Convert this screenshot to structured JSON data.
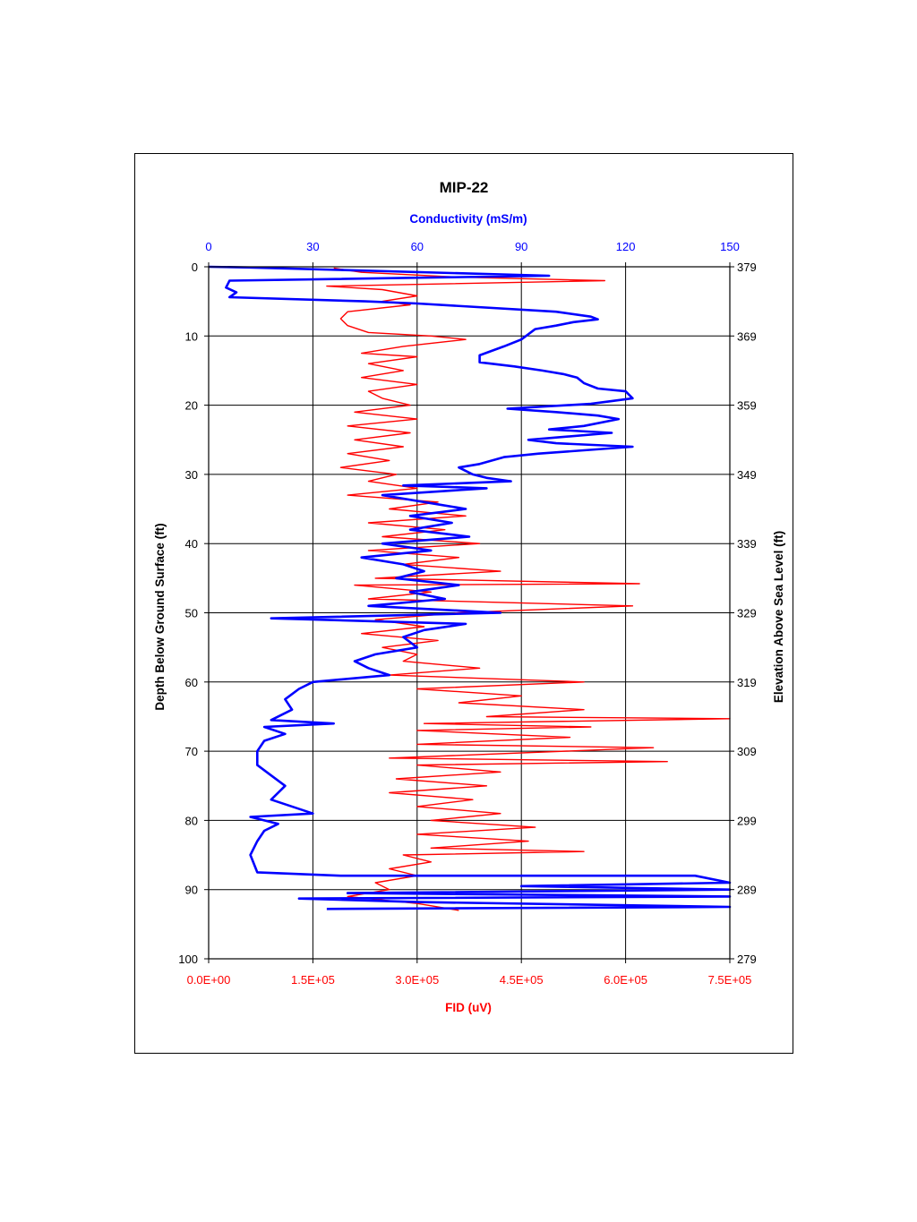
{
  "chart_data": {
    "type": "line",
    "title": "MIP-22",
    "top_axis": {
      "label": "Conductivity (mS/m)",
      "range": [
        0,
        150
      ],
      "ticks": [
        "0",
        "30",
        "60",
        "90",
        "120",
        "150"
      ],
      "color": "#0000ff"
    },
    "bottom_axis": {
      "label": "FID (uV)",
      "range": [
        0,
        750000
      ],
      "ticks": [
        "0.0E+00",
        "1.5E+05",
        "3.0E+05",
        "4.5E+05",
        "6.0E+05",
        "7.5E+05"
      ],
      "color": "#ff0000"
    },
    "left_axis": {
      "label": "Depth Below Ground Surface (ft)",
      "range": [
        0,
        100
      ],
      "ticks": [
        "0",
        "10",
        "20",
        "30",
        "40",
        "50",
        "60",
        "70",
        "80",
        "90",
        "100"
      ],
      "inverted": true
    },
    "right_axis": {
      "label": "Elevation Above Sea Level (ft)",
      "ticks": [
        "379",
        "369",
        "359",
        "349",
        "339",
        "329",
        "319",
        "309",
        "299",
        "289",
        "279"
      ]
    },
    "grid": true,
    "series": [
      {
        "name": "Conductivity (mS/m)",
        "color": "#0000ff",
        "axis": "top",
        "points": [
          [
            0,
            0
          ],
          [
            12,
            0.1
          ],
          [
            98,
            1.3
          ],
          [
            6,
            2
          ],
          [
            5,
            3
          ],
          [
            8,
            3.7
          ],
          [
            6,
            4.4
          ],
          [
            45,
            5
          ],
          [
            60,
            5.3
          ],
          [
            100,
            6.5
          ],
          [
            110,
            7.2
          ],
          [
            112,
            7.6
          ],
          [
            105,
            8
          ],
          [
            100,
            8.5
          ],
          [
            94,
            9
          ],
          [
            90,
            10.5
          ],
          [
            85,
            11.5
          ],
          [
            78,
            12.8
          ],
          [
            78,
            13.8
          ],
          [
            88,
            14.4
          ],
          [
            96,
            15
          ],
          [
            102,
            15.5
          ],
          [
            106,
            16
          ],
          [
            108,
            16.8
          ],
          [
            112,
            17.6
          ],
          [
            120,
            18
          ],
          [
            122,
            19
          ],
          [
            110,
            19.8
          ],
          [
            86,
            20.5
          ],
          [
            100,
            21
          ],
          [
            112,
            21.5
          ],
          [
            118,
            22
          ],
          [
            108,
            23
          ],
          [
            98,
            23.5
          ],
          [
            116,
            24
          ],
          [
            92,
            25
          ],
          [
            100,
            25.5
          ],
          [
            122,
            26
          ],
          [
            95,
            27
          ],
          [
            85,
            27.5
          ],
          [
            78,
            28.5
          ],
          [
            72,
            29
          ],
          [
            76,
            30
          ],
          [
            80,
            30.5
          ],
          [
            87,
            31
          ],
          [
            56,
            31.6
          ],
          [
            80,
            32
          ],
          [
            50,
            33
          ],
          [
            62,
            34
          ],
          [
            74,
            35
          ],
          [
            58,
            36
          ],
          [
            70,
            37
          ],
          [
            58,
            38
          ],
          [
            75,
            39
          ],
          [
            50,
            40
          ],
          [
            64,
            41
          ],
          [
            44,
            42
          ],
          [
            56,
            43
          ],
          [
            62,
            44
          ],
          [
            54,
            45
          ],
          [
            72,
            46
          ],
          [
            58,
            47
          ],
          [
            68,
            48
          ],
          [
            46,
            49
          ],
          [
            84,
            50
          ],
          [
            18,
            50.8
          ],
          [
            74,
            51.6
          ],
          [
            62,
            52.5
          ],
          [
            56,
            53.5
          ],
          [
            60,
            55
          ],
          [
            48,
            56
          ],
          [
            42,
            57
          ],
          [
            46,
            58
          ],
          [
            52,
            59
          ],
          [
            30,
            60
          ],
          [
            26,
            61
          ],
          [
            22,
            62.5
          ],
          [
            24,
            64
          ],
          [
            18,
            65.5
          ],
          [
            36,
            66
          ],
          [
            16,
            66.5
          ],
          [
            22,
            67.5
          ],
          [
            16,
            68.5
          ],
          [
            14,
            70
          ],
          [
            14,
            72
          ],
          [
            18,
            73.5
          ],
          [
            22,
            75
          ],
          [
            18,
            77
          ],
          [
            30,
            79
          ],
          [
            12,
            79.5
          ],
          [
            20,
            80.5
          ],
          [
            16,
            81.5
          ],
          [
            14,
            83
          ],
          [
            12,
            85
          ],
          [
            14,
            87.5
          ],
          [
            38,
            88
          ],
          [
            140,
            88
          ],
          [
            150,
            89
          ],
          [
            90,
            89.5
          ],
          [
            150,
            90
          ],
          [
            40,
            90.5
          ],
          [
            150,
            91
          ],
          [
            26,
            91.3
          ],
          [
            60,
            91.8
          ],
          [
            150,
            92.5
          ],
          [
            34,
            92.8
          ]
        ]
      },
      {
        "name": "FID (uV)",
        "color": "#ff0000",
        "axis": "bottom",
        "points": [
          [
            180000,
            0.2
          ],
          [
            220000,
            0.8
          ],
          [
            360000,
            1.5
          ],
          [
            570000,
            2
          ],
          [
            170000,
            2.8
          ],
          [
            250000,
            3.3
          ],
          [
            300000,
            4.2
          ],
          [
            250000,
            5
          ],
          [
            290000,
            5.5
          ],
          [
            200000,
            6.5
          ],
          [
            190000,
            7.5
          ],
          [
            200000,
            8.5
          ],
          [
            230000,
            9.5
          ],
          [
            320000,
            10
          ],
          [
            370000,
            10.5
          ],
          [
            280000,
            11.5
          ],
          [
            220000,
            12.5
          ],
          [
            300000,
            13
          ],
          [
            230000,
            14
          ],
          [
            280000,
            15
          ],
          [
            220000,
            16
          ],
          [
            300000,
            17
          ],
          [
            230000,
            18
          ],
          [
            250000,
            19
          ],
          [
            290000,
            20
          ],
          [
            210000,
            21
          ],
          [
            300000,
            22
          ],
          [
            200000,
            23
          ],
          [
            290000,
            24
          ],
          [
            210000,
            25
          ],
          [
            280000,
            26
          ],
          [
            200000,
            27
          ],
          [
            260000,
            28
          ],
          [
            190000,
            29
          ],
          [
            270000,
            30
          ],
          [
            230000,
            31
          ],
          [
            300000,
            32
          ],
          [
            200000,
            33
          ],
          [
            330000,
            34
          ],
          [
            260000,
            35
          ],
          [
            370000,
            36
          ],
          [
            230000,
            37
          ],
          [
            340000,
            38
          ],
          [
            250000,
            39
          ],
          [
            390000,
            40
          ],
          [
            230000,
            41
          ],
          [
            360000,
            42
          ],
          [
            280000,
            43
          ],
          [
            420000,
            44
          ],
          [
            240000,
            45
          ],
          [
            620000,
            45.8
          ],
          [
            210000,
            46
          ],
          [
            320000,
            47
          ],
          [
            230000,
            48
          ],
          [
            610000,
            49
          ],
          [
            360000,
            50
          ],
          [
            240000,
            51
          ],
          [
            310000,
            52
          ],
          [
            220000,
            53
          ],
          [
            330000,
            54
          ],
          [
            250000,
            55
          ],
          [
            300000,
            56
          ],
          [
            280000,
            57
          ],
          [
            390000,
            58
          ],
          [
            260000,
            59
          ],
          [
            540000,
            60
          ],
          [
            300000,
            61
          ],
          [
            450000,
            62
          ],
          [
            360000,
            63
          ],
          [
            540000,
            64
          ],
          [
            400000,
            65
          ],
          [
            750000,
            65.3
          ],
          [
            310000,
            66
          ],
          [
            550000,
            66.5
          ],
          [
            300000,
            67
          ],
          [
            520000,
            68
          ],
          [
            300000,
            69
          ],
          [
            640000,
            69.5
          ],
          [
            260000,
            71
          ],
          [
            660000,
            71.5
          ],
          [
            300000,
            72
          ],
          [
            420000,
            73
          ],
          [
            270000,
            74
          ],
          [
            400000,
            75
          ],
          [
            260000,
            76
          ],
          [
            380000,
            77
          ],
          [
            300000,
            78
          ],
          [
            420000,
            79
          ],
          [
            320000,
            80
          ],
          [
            470000,
            81
          ],
          [
            300000,
            82
          ],
          [
            460000,
            83
          ],
          [
            320000,
            84
          ],
          [
            540000,
            84.5
          ],
          [
            280000,
            85
          ],
          [
            320000,
            86
          ],
          [
            260000,
            87
          ],
          [
            300000,
            88
          ],
          [
            240000,
            89
          ],
          [
            260000,
            90
          ],
          [
            200000,
            91
          ],
          [
            300000,
            92
          ],
          [
            360000,
            93
          ]
        ]
      }
    ]
  }
}
